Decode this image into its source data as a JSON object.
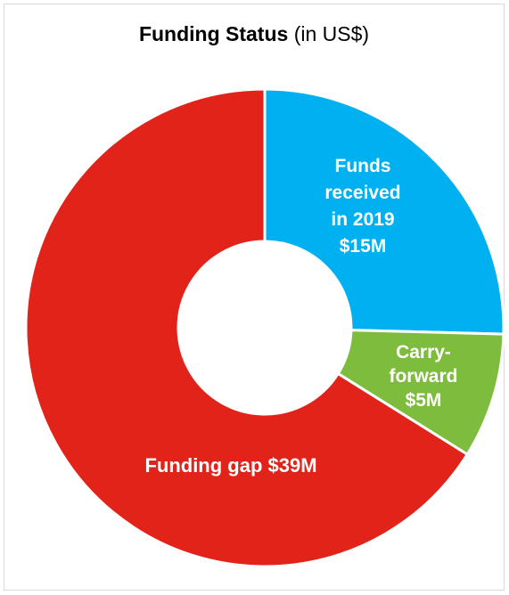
{
  "chart_data": {
    "type": "pie",
    "title": "Funding Status",
    "subtitle": "(in US$)",
    "donut": true,
    "categories": [
      "Funds received in 2019",
      "Carry-forward",
      "Funding gap"
    ],
    "values": [
      15,
      5,
      39
    ],
    "unit": "US$ M",
    "colors": [
      "#00b0f0",
      "#7ebc3e",
      "#e2231a"
    ],
    "labels": [
      [
        "Funds",
        "received",
        "in 2019",
        "$15M"
      ],
      [
        "Carry-",
        "forward",
        "$5M"
      ],
      [
        "Funding gap $39M"
      ]
    ],
    "legend": "none"
  }
}
